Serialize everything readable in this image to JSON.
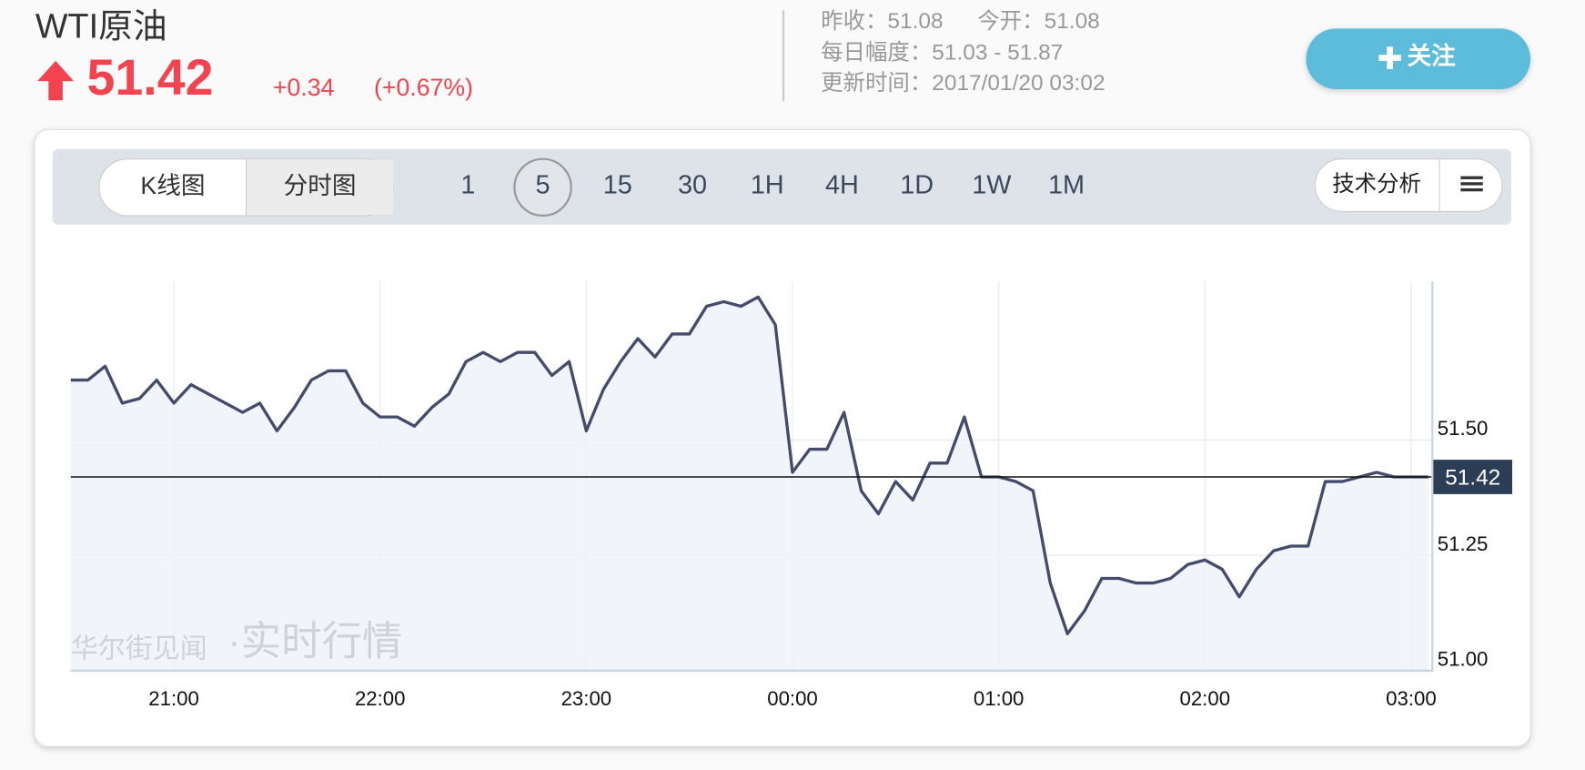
{
  "header": {
    "title": "WTI原油",
    "price": "51.42",
    "change": "+0.34",
    "change_pct": "(+0.67%)",
    "stats": [
      "昨收：51.08",
      "今开：51.08",
      "每日幅度：51.03 - 51.87",
      "更新时间：2017/01/20 03:02"
    ],
    "follow_button": "关注"
  },
  "toolbar": {
    "views": [
      "K线图",
      "分时图"
    ],
    "active_view": 1,
    "intervals": [
      "1",
      "5",
      "15",
      "30",
      "1H",
      "4H",
      "1D",
      "1W",
      "1M"
    ],
    "active_interval": 1,
    "analysis_button": "技术分析"
  },
  "chart_data": {
    "type": "line",
    "color": "#444b6b",
    "fill_color": "#eef1f6",
    "categories": [
      null,
      null,
      null,
      null,
      null,
      null,
      "21:00",
      null,
      null,
      null,
      null,
      null,
      null,
      null,
      null,
      null,
      null,
      null,
      "22:00",
      null,
      null,
      null,
      null,
      null,
      null,
      null,
      null,
      null,
      null,
      null,
      "23:00",
      null,
      null,
      null,
      null,
      null,
      null,
      null,
      null,
      null,
      null,
      null,
      "00:00",
      null,
      null,
      null,
      null,
      null,
      null,
      null,
      null,
      null,
      null,
      null,
      "01:00",
      null,
      null,
      null,
      null,
      null,
      null,
      null,
      null,
      null,
      null,
      null,
      "02:00",
      null,
      null,
      null,
      null,
      null,
      null,
      null,
      null,
      null,
      null,
      null,
      "03:00",
      null
    ],
    "values": [
      51.63,
      51.63,
      51.66,
      51.58,
      51.59,
      51.63,
      51.58,
      51.62,
      51.6,
      51.58,
      51.56,
      51.58,
      51.52,
      51.57,
      51.63,
      51.65,
      51.65,
      51.58,
      51.55,
      51.55,
      51.53,
      51.57,
      51.6,
      51.67,
      51.69,
      51.67,
      51.69,
      51.69,
      51.64,
      51.67,
      51.52,
      51.61,
      51.67,
      51.72,
      51.68,
      51.73,
      51.73,
      51.79,
      51.8,
      51.79,
      51.81,
      51.75,
      51.43,
      51.48,
      51.48,
      51.56,
      51.39,
      51.34,
      51.41,
      51.37,
      51.45,
      51.45,
      51.55,
      51.42,
      51.42,
      51.41,
      51.39,
      51.19,
      51.08,
      51.13,
      51.2,
      51.2,
      51.19,
      51.19,
      51.2,
      51.23,
      51.24,
      51.22,
      51.16,
      51.22,
      51.26,
      51.27,
      51.27,
      51.41,
      51.41,
      51.42,
      51.43,
      51.42,
      51.42,
      51.42
    ],
    "ylim": [
      51,
      51.844
    ],
    "yticks": [
      {
        "value": 51.5,
        "label": "51.50"
      },
      {
        "value": 51.25,
        "label": "51.25"
      },
      {
        "value": 51,
        "label": "51.00"
      }
    ],
    "last_price": 51.42,
    "grid": true,
    "watermark": {
      "brand": "华尔街见闻",
      "tag": "·实时行情"
    }
  }
}
